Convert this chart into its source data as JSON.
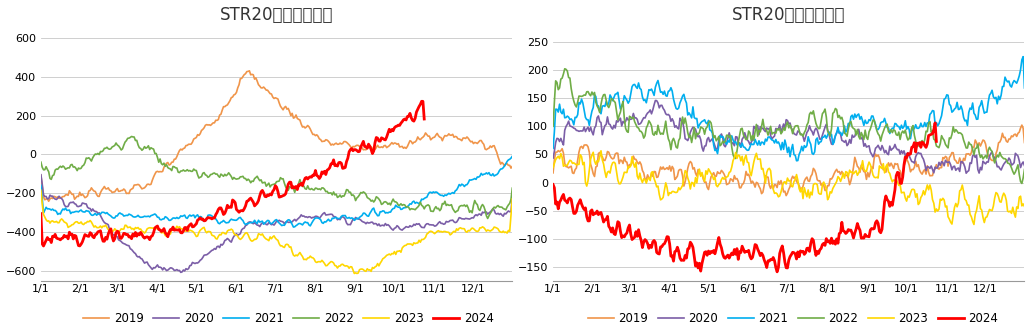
{
  "title1": "STR20混合内外价差",
  "title2": "STR20船货加工利润",
  "years": [
    "2019",
    "2020",
    "2021",
    "2022",
    "2023",
    "2024"
  ],
  "colors": {
    "2019": "#F0954A",
    "2020": "#7B5EA7",
    "2021": "#00AEEF",
    "2022": "#70AD47",
    "2023": "#FFD700",
    "2024": "#FF0000"
  },
  "line_widths": {
    "2019": 1.2,
    "2020": 1.2,
    "2021": 1.2,
    "2022": 1.2,
    "2023": 1.2,
    "2024": 2.0
  },
  "chart1_ylim": [
    -650,
    650
  ],
  "chart1_yticks": [
    -600,
    -400,
    -200,
    0,
    200,
    400,
    600
  ],
  "chart2_ylim": [
    -175,
    275
  ],
  "chart2_yticks": [
    -150,
    -100,
    -50,
    0,
    50,
    100,
    150,
    200,
    250
  ],
  "xticks": [
    0,
    30,
    59,
    90,
    120,
    151,
    181,
    212,
    243,
    273,
    304,
    334
  ],
  "xlabels": [
    "1/1",
    "2/1",
    "3/1",
    "4/1",
    "5/1",
    "6/1",
    "7/1",
    "8/1",
    "9/1",
    "10/1",
    "11/1",
    "12/1"
  ],
  "n_days": 365,
  "background_color": "#FFFFFF",
  "grid_color": "#C8C8C8",
  "title_fontsize": 12,
  "legend_fontsize": 8.5,
  "tick_fontsize": 8
}
